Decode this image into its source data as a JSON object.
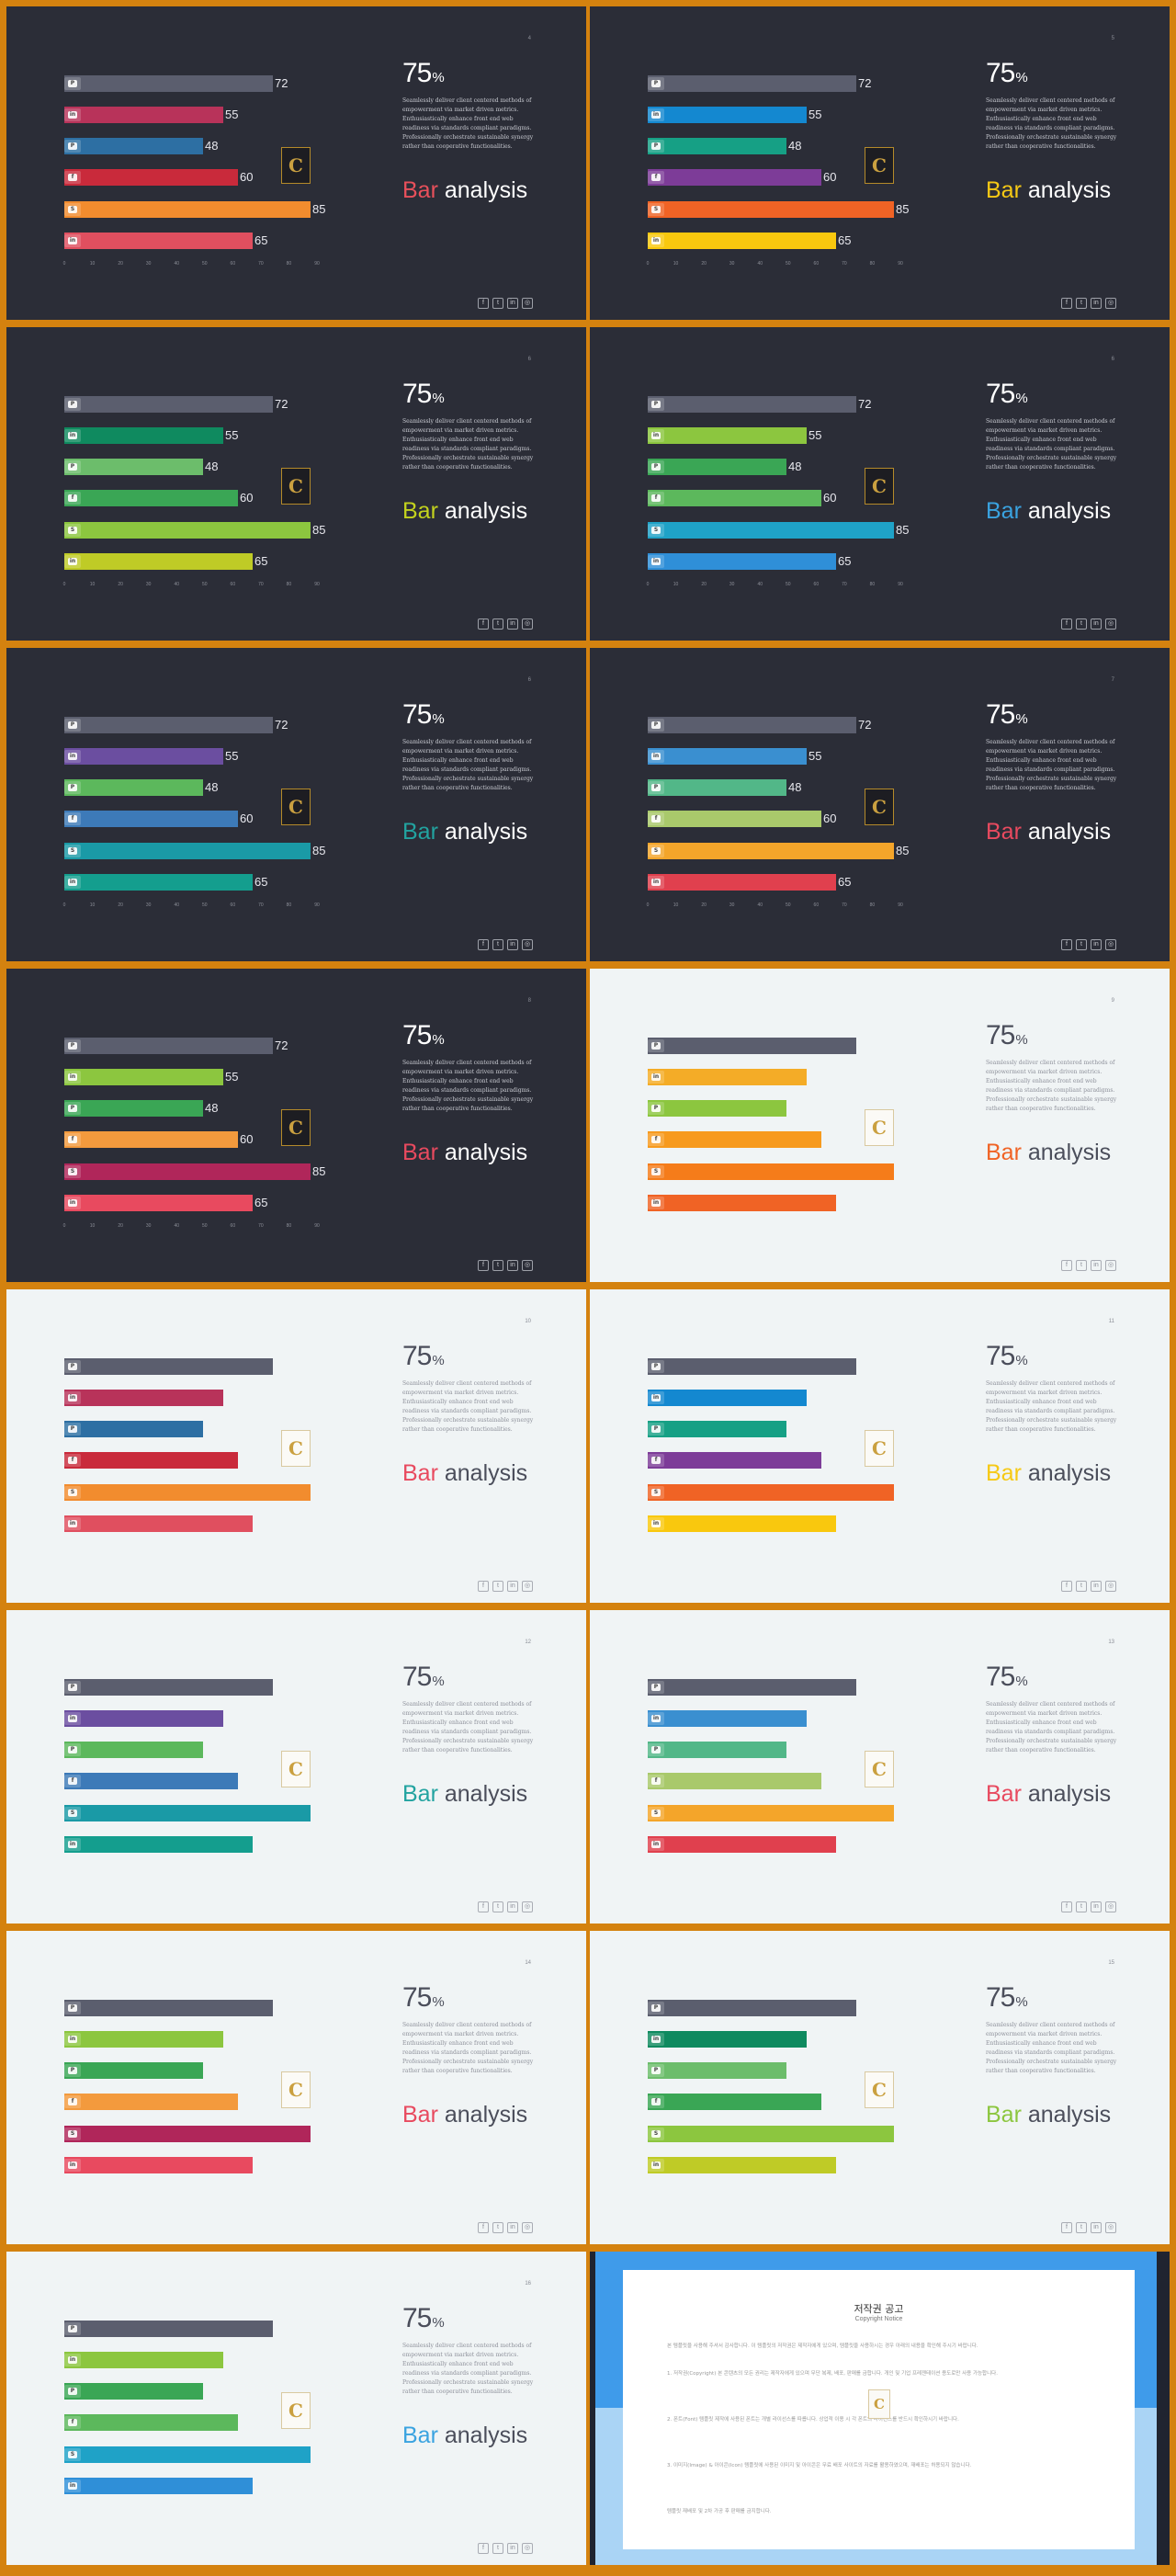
{
  "slides": [
    {
      "type": "bars",
      "theme": "dark",
      "page": "4",
      "pct": "75",
      "heading_accent": "Bar",
      "heading_accent_color": "#e8505b",
      "colors": [
        "#5b5e6e",
        "#b8335a",
        "#2d6fa3",
        "#c92a3b",
        "#f28c2e",
        "#e04f5f"
      ]
    },
    {
      "type": "bars",
      "theme": "dark",
      "page": "5",
      "pct": "75",
      "heading_accent": "Bar",
      "heading_accent_color": "#f6c915",
      "colors": [
        "#5b5e6e",
        "#1488d0",
        "#16a085",
        "#7d3c98",
        "#f06325",
        "#f9c80e"
      ]
    },
    {
      "type": "bars",
      "theme": "dark",
      "page": "6",
      "pct": "75",
      "heading_accent": "Bar",
      "heading_accent_color": "#c3d21e",
      "colors": [
        "#5b5e6e",
        "#0f8a5f",
        "#6cbd6b",
        "#3aa655",
        "#8cc63f",
        "#bfcb26"
      ]
    },
    {
      "type": "bars",
      "theme": "dark",
      "page": "6",
      "pct": "75",
      "heading_accent": "Bar",
      "heading_accent_color": "#3aa3e0",
      "colors": [
        "#5b5e6e",
        "#8cc63f",
        "#3aa655",
        "#5cb85c",
        "#1fa2c7",
        "#2f8fd8"
      ]
    },
    {
      "type": "bars",
      "theme": "dark",
      "page": "6",
      "pct": "75",
      "heading_accent": "Bar",
      "heading_accent_color": "#22a3a0",
      "colors": [
        "#5b5e6e",
        "#6b4ea0",
        "#5cb85c",
        "#3d7ab8",
        "#1a9aa6",
        "#149e8e"
      ]
    },
    {
      "type": "bars",
      "theme": "dark",
      "page": "7",
      "pct": "75",
      "heading_accent": "Bar",
      "heading_accent_color": "#e84a5f",
      "colors": [
        "#5b5e6e",
        "#3a8fd0",
        "#52b788",
        "#a9c96b",
        "#f4a52a",
        "#e0404e"
      ]
    },
    {
      "type": "bars",
      "theme": "dark",
      "page": "8",
      "pct": "75",
      "heading_accent": "Bar",
      "heading_accent_color": "#e84a5f",
      "colors": [
        "#5b5e6e",
        "#8cc63f",
        "#3aa655",
        "#f39a3d",
        "#b0265a",
        "#e84a5f"
      ]
    },
    {
      "type": "bars",
      "theme": "light",
      "page": "9",
      "pct": "75",
      "heading_accent": "Bar",
      "heading_accent_color": "#f06325",
      "colors": [
        "#5b5e6e",
        "#f4ac27",
        "#8cc63f",
        "#f79a1e",
        "#f57c1a",
        "#f06325"
      ]
    },
    {
      "type": "bars",
      "theme": "light",
      "page": "10",
      "pct": "75",
      "heading_accent": "Bar",
      "heading_accent_color": "#e84a5f",
      "colors": [
        "#5b5e6e",
        "#b8335a",
        "#2d6fa3",
        "#c92a3b",
        "#f28c2e",
        "#e04f5f"
      ]
    },
    {
      "type": "bars",
      "theme": "light",
      "page": "11",
      "pct": "75",
      "heading_accent": "Bar",
      "heading_accent_color": "#f6c915",
      "colors": [
        "#5b5e6e",
        "#1488d0",
        "#16a085",
        "#7d3c98",
        "#f06325",
        "#f9c80e"
      ]
    },
    {
      "type": "bars",
      "theme": "light",
      "page": "12",
      "pct": "75",
      "heading_accent": "Bar",
      "heading_accent_color": "#22a3a0",
      "colors": [
        "#5b5e6e",
        "#6b4ea0",
        "#5cb85c",
        "#3d7ab8",
        "#1a9aa6",
        "#149e8e"
      ]
    },
    {
      "type": "bars",
      "theme": "light",
      "page": "13",
      "pct": "75",
      "heading_accent": "Bar",
      "heading_accent_color": "#e84a5f",
      "colors": [
        "#5b5e6e",
        "#3a8fd0",
        "#52b788",
        "#a9c96b",
        "#f4a52a",
        "#e0404e"
      ]
    },
    {
      "type": "bars",
      "theme": "light",
      "page": "14",
      "pct": "75",
      "heading_accent": "Bar",
      "heading_accent_color": "#e84a5f",
      "colors": [
        "#5b5e6e",
        "#8cc63f",
        "#3aa655",
        "#f39a3d",
        "#b0265a",
        "#e84a5f"
      ]
    },
    {
      "type": "bars",
      "theme": "light",
      "page": "15",
      "pct": "75",
      "heading_accent": "Bar",
      "heading_accent_color": "#8cc63f",
      "colors": [
        "#5b5e6e",
        "#0f8a5f",
        "#6cbd6b",
        "#3aa655",
        "#8cc63f",
        "#bfcb26"
      ]
    },
    {
      "type": "bars",
      "theme": "light",
      "page": "16",
      "pct": "75",
      "heading_accent": "Bar",
      "heading_accent_color": "#3aa3e0",
      "colors": [
        "#5b5e6e",
        "#8cc63f",
        "#3aa655",
        "#5cb85c",
        "#1fa2c7",
        "#2f8fd8"
      ]
    },
    {
      "type": "copyright"
    }
  ],
  "chart_data": {
    "type": "bar",
    "orientation": "horizontal",
    "categories": [
      "pinterest",
      "linkedin",
      "skype",
      "facebook",
      "skype-2",
      "linkedin-2"
    ],
    "values": [
      72,
      55,
      48,
      60,
      85,
      65
    ],
    "xlim": [
      0,
      90
    ],
    "x_ticks": [
      "0",
      "10",
      "20",
      "30",
      "40",
      "50",
      "60",
      "70",
      "80",
      "90"
    ],
    "grid": false
  },
  "common": {
    "pct_sign": "%",
    "heading_rest": "analysis",
    "desc": "Seamlessly deliver client centered methods of empowerment via market driven metrics. Enthusiastically enhance front end web readiness via standards compliant paradigms. Professionally orchestrate sustainable synergy rather than cooperative functionalities.",
    "logo_letter": "C",
    "icon_glyphs": [
      "P",
      "in",
      "P",
      "f",
      "S",
      "in"
    ],
    "social_glyphs": [
      "f",
      "t",
      "in",
      "◎"
    ]
  },
  "copyright": {
    "title": "저작권 공고",
    "subtitle": "Copyright Notice",
    "p1": "본 템플릿을 사용해 주셔서 감사합니다. 이 템플릿의 저작권은 제작자에게 있으며, 템플릿을 사용하시는 경우 아래의 내용을 확인해 주시기 바랍니다.",
    "p2": "1. 저작권(Copyright) 본 콘텐츠의 모든 권리는 제작자에게 있으며 무단 복제, 배포, 판매를 금합니다. 개인 및 기업 프레젠테이션 용도로만 사용 가능합니다.",
    "p3": "2. 폰트(Font) 템플릿 제작에 사용된 폰트는 개별 라이선스를 따릅니다. 상업적 이용 시 각 폰트의 라이선스를 반드시 확인하시기 바랍니다.",
    "p4": "3. 이미지(Image) & 아이콘(Icon) 템플릿에 사용된 이미지 및 아이콘은 무료 배포 사이트의 자료를 활용하였으며, 재배포는 허용되지 않습니다.",
    "p5": "템플릿 재배포 및 2차 가공 후 판매를 금지합니다."
  }
}
